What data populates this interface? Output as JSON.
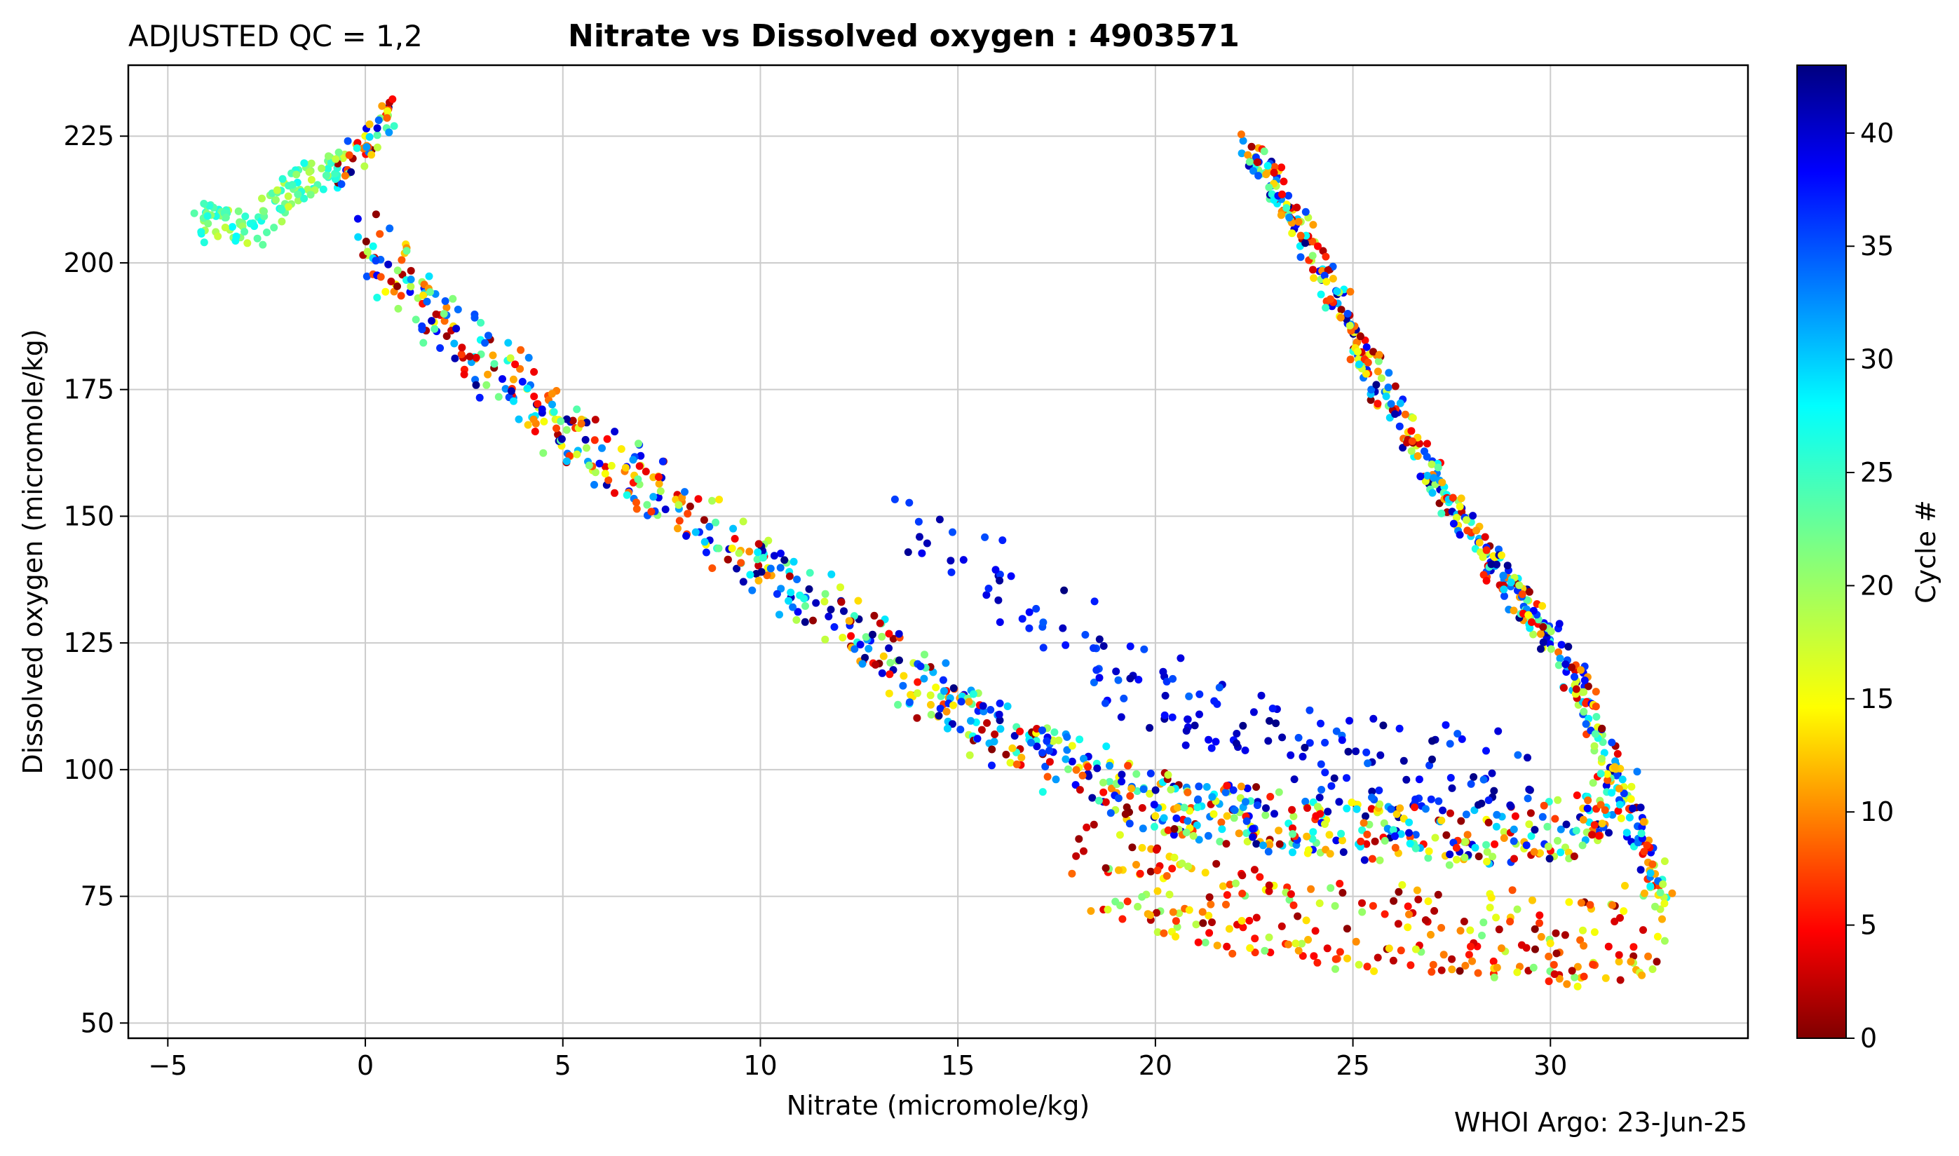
{
  "header": {
    "qc_label": "ADJUSTED QC = 1,2",
    "title": "Nitrate vs Dissolved oxygen : 4903571"
  },
  "footer": {
    "credit": "WHOI Argo: 23-Jun-25"
  },
  "colorbar": {
    "label": "Cycle #",
    "min": 0,
    "max": 43,
    "ticks": [
      0,
      5,
      10,
      15,
      20,
      25,
      30,
      35,
      40
    ],
    "colormap": "jet_reversed"
  },
  "chart_data": {
    "type": "scatter",
    "title": "Nitrate vs Dissolved oxygen : 4903571",
    "xlabel": "Nitrate  (micromole/kg)",
    "ylabel": "Dissolved oxygen  (micromole/kg)",
    "xlim": [
      -6,
      35
    ],
    "ylim": [
      47,
      239
    ],
    "xticks": [
      -5,
      0,
      5,
      10,
      15,
      20,
      25,
      30
    ],
    "yticks": [
      50,
      75,
      100,
      125,
      150,
      175,
      200,
      225
    ],
    "grid": true,
    "color_variable": "Cycle #",
    "branches": [
      {
        "name": "surface",
        "x": [
          -4.2,
          -3.9,
          -3.5,
          -3.2,
          -2.7,
          -2.1,
          -1.5,
          -1,
          -0.6,
          -0.3,
          0,
          0.3,
          0.5,
          0.7
        ],
        "y": [
          207,
          209,
          208,
          207,
          207,
          213,
          216,
          217,
          219,
          221,
          223,
          226,
          229,
          230
        ]
      },
      {
        "name": "main",
        "x": [
          0,
          1,
          2,
          3,
          4,
          5,
          6,
          7,
          8,
          9,
          10,
          11,
          12,
          13,
          14,
          15,
          16,
          17,
          18,
          19,
          20,
          21,
          22,
          23,
          24,
          25,
          26,
          27,
          28,
          29,
          30,
          31,
          32
        ],
        "y": [
          205,
          195,
          188,
          181,
          175,
          168,
          162,
          157,
          151,
          146,
          140,
          135,
          129,
          124,
          118,
          112,
          107,
          103,
          100,
          97,
          94,
          92,
          91,
          90,
          89,
          88,
          88,
          87,
          87,
          87,
          88,
          90,
          95
        ]
      },
      {
        "name": "deep",
        "x": [
          22.3,
          23,
          23.8,
          24.6,
          25.4,
          26.2,
          27,
          27.8,
          28.6,
          29.4,
          30.2,
          30.8,
          31.3,
          31.7,
          32.1,
          32.4,
          32.6,
          32.8
        ],
        "y": [
          224,
          216,
          205,
          193,
          180,
          168,
          158,
          149,
          140,
          132,
          124,
          115,
          106,
          98,
          91,
          85,
          80,
          76
        ]
      },
      {
        "name": "upper-scatter",
        "x": [
          13.5,
          15.2,
          16.5,
          17.5,
          18.5,
          19.5,
          20.5,
          21.5,
          22.5,
          23.5,
          24.5,
          25.5,
          26.5,
          27.5,
          28.5,
          29.5
        ],
        "y": [
          147,
          140,
          135,
          129,
          123,
          118,
          114,
          111,
          108,
          105,
          103,
          102,
          101,
          101,
          100,
          100
        ]
      },
      {
        "name": "lower-scatter",
        "x": [
          18,
          19,
          20,
          21,
          22,
          23,
          24,
          25,
          26,
          27,
          28,
          29,
          30,
          31,
          32,
          33
        ],
        "y": [
          82,
          79,
          76,
          74,
          72,
          71,
          70,
          69,
          69,
          68,
          68,
          67,
          67,
          66,
          66,
          76
        ]
      }
    ],
    "cycle_range": [
      0,
      43
    ]
  }
}
